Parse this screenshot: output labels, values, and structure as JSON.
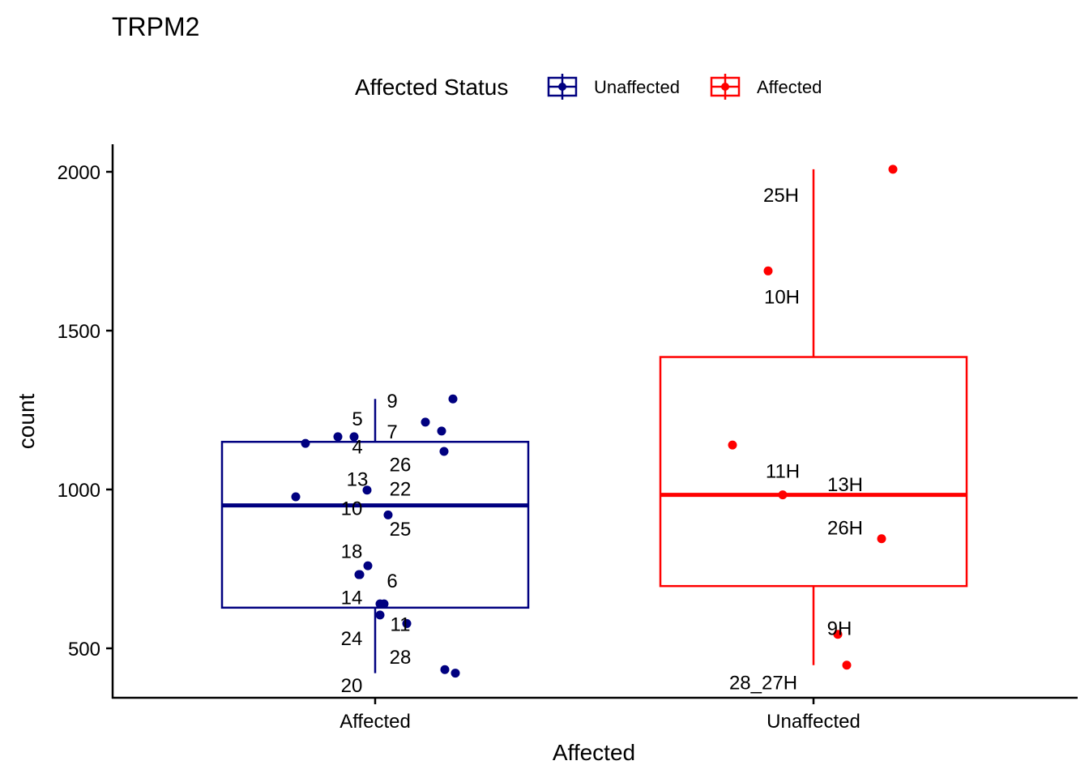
{
  "chart_data": {
    "type": "boxplot",
    "title": "TRPM2",
    "xlabel": "Affected",
    "ylabel": "count",
    "ylim": [
      340,
      2085
    ],
    "yticks": [
      500,
      1000,
      1500,
      2000
    ],
    "grid": false,
    "legend": {
      "title": "Affected Status",
      "position": "top",
      "entries": [
        {
          "label": "Unaffected",
          "color": "#000080"
        },
        {
          "label": "Affected",
          "color": "#ff0000"
        }
      ]
    },
    "categories": [
      "Affected",
      "Unaffected"
    ],
    "boxes": [
      {
        "category": "Affected",
        "color": "#000080",
        "whisker_low": 422,
        "q1": 628,
        "median": 950,
        "q3": 1150,
        "whisker_high": 1285
      },
      {
        "category": "Unaffected",
        "color": "#ff0000",
        "whisker_low": 447,
        "q1": 696,
        "median": 983,
        "q3": 1417,
        "whisker_high": 2008
      }
    ],
    "points": [
      {
        "category": "Affected",
        "label": "9",
        "value": 1285
      },
      {
        "category": "Affected",
        "label": "5",
        "value": 1184
      },
      {
        "category": "Affected",
        "label": "7",
        "value": 1212
      },
      {
        "category": "Affected",
        "label": "4",
        "value": 1166
      },
      {
        "category": "Affected",
        "label": "26",
        "value": 1120
      },
      {
        "category": "Affected",
        "label": "",
        "value": 1145
      },
      {
        "category": "Affected",
        "label": "13",
        "value": 998
      },
      {
        "category": "Affected",
        "label": "22",
        "value": 977
      },
      {
        "category": "Affected",
        "label": "10",
        "value": 920
      },
      {
        "category": "Affected",
        "label": "25",
        "value": 760
      },
      {
        "category": "Affected",
        "label": "18",
        "value": 732
      },
      {
        "category": "Affected",
        "label": "14",
        "value": 640
      },
      {
        "category": "Affected",
        "label": "6",
        "value": 605
      },
      {
        "category": "Affected",
        "label": "11",
        "value": 578
      },
      {
        "category": "Affected",
        "label": "24",
        "value": 433
      },
      {
        "category": "Affected",
        "label": "28",
        "value": 422
      },
      {
        "category": "Affected",
        "label": "20",
        "value": 1135
      },
      {
        "category": "Unaffected",
        "label": "25H",
        "value": 2008
      },
      {
        "category": "Unaffected",
        "label": "10H",
        "value": 1688
      },
      {
        "category": "Unaffected",
        "label": "11H",
        "value": 1140
      },
      {
        "category": "Unaffected",
        "label": "13H",
        "value": 983
      },
      {
        "category": "Unaffected",
        "label": "26H",
        "value": 845
      },
      {
        "category": "Unaffected",
        "label": "9H",
        "value": 544
      },
      {
        "category": "Unaffected",
        "label": "28_27H",
        "value": 447
      }
    ]
  }
}
